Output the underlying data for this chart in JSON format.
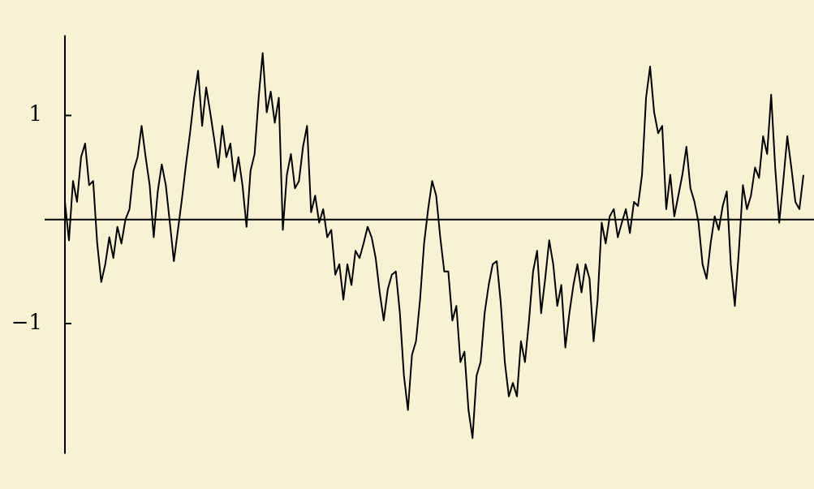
{
  "chart_data": {
    "type": "line",
    "categories": [
      null,
      null,
      null,
      null,
      null,
      null,
      null,
      null,
      null,
      null,
      null,
      null,
      null,
      null,
      null,
      null,
      null,
      null,
      null,
      null,
      null,
      null,
      null,
      null,
      null,
      null,
      null,
      null,
      null,
      null,
      null,
      null,
      null,
      null,
      null,
      null,
      null,
      null,
      null,
      null,
      null,
      null,
      null,
      null,
      null,
      null,
      null,
      null,
      null,
      null,
      null,
      null,
      null,
      null,
      null,
      null,
      null,
      null,
      null,
      null,
      null,
      null,
      null,
      null,
      null,
      null,
      null,
      null,
      null,
      null,
      null,
      null,
      null,
      null,
      null,
      null,
      null,
      null,
      null,
      null,
      null,
      null,
      null,
      null,
      null,
      null,
      null,
      null,
      null,
      null,
      null,
      null,
      null,
      null,
      null,
      null,
      null,
      null,
      null,
      null,
      null,
      null,
      null,
      null,
      null,
      null,
      null,
      null,
      null,
      null,
      null,
      null,
      null,
      null,
      null,
      null,
      null,
      null,
      null,
      null,
      null,
      null,
      null,
      null,
      null,
      null,
      null,
      null,
      null,
      null,
      null,
      null,
      null,
      null,
      null,
      null,
      null,
      null,
      null,
      null,
      null,
      null,
      null,
      null,
      null,
      null,
      null,
      null,
      null,
      null,
      null,
      null,
      null,
      null,
      null,
      null,
      null,
      null,
      null,
      null,
      null,
      null,
      null,
      null,
      null,
      null,
      null,
      null,
      null,
      null,
      null,
      null,
      null,
      null,
      null,
      null,
      null,
      null,
      null,
      null,
      null,
      null,
      null,
      null
    ],
    "series": [
      {
        "color": "#000000",
        "values": [
          0.17,
          -0.2,
          0.37,
          0.17,
          0.6,
          0.73,
          0.33,
          0.37,
          -0.23,
          -0.6,
          -0.43,
          -0.17,
          -0.37,
          -0.07,
          -0.23,
          0,
          0.1,
          0.47,
          0.6,
          0.9,
          0.6,
          0.33,
          -0.17,
          0.27,
          0.53,
          0.33,
          -0.03,
          -0.4,
          -0.1,
          0.2,
          0.53,
          0.83,
          1.17,
          1.43,
          0.9,
          1.27,
          1.03,
          0.77,
          0.5,
          0.9,
          0.6,
          0.73,
          0.37,
          0.6,
          0.33,
          -0.07,
          0.47,
          0.63,
          1.17,
          1.6,
          1.03,
          1.23,
          0.93,
          1.17,
          -0.1,
          0.43,
          0.63,
          0.3,
          0.37,
          0.7,
          0.9,
          0.07,
          0.23,
          -0.03,
          0.1,
          -0.17,
          -0.1,
          -0.53,
          -0.43,
          -0.77,
          -0.43,
          -0.63,
          -0.3,
          -0.37,
          -0.23,
          -0.07,
          -0.17,
          -0.37,
          -0.7,
          -0.97,
          -0.67,
          -0.53,
          -0.5,
          -0.9,
          -1.5,
          -1.83,
          -1.3,
          -1.17,
          -0.77,
          -0.23,
          0.1,
          0.37,
          0.23,
          -0.17,
          -0.5,
          -0.5,
          -0.97,
          -0.83,
          -1.37,
          -1.27,
          -1.83,
          -2.1,
          -1.5,
          -1.37,
          -0.9,
          -0.63,
          -0.43,
          -0.4,
          -0.8,
          -1.37,
          -1.7,
          -1.57,
          -1.7,
          -1.17,
          -1.37,
          -0.97,
          -0.5,
          -0.3,
          -0.9,
          -0.57,
          -0.2,
          -0.43,
          -0.83,
          -0.63,
          -1.23,
          -0.9,
          -0.63,
          -0.43,
          -0.7,
          -0.43,
          -0.57,
          -1.17,
          -0.77,
          -0.03,
          -0.23,
          0.03,
          0.1,
          -0.17,
          -0.03,
          0.1,
          -0.13,
          0.17,
          0.13,
          0.43,
          1.17,
          1.47,
          1.03,
          0.83,
          0.9,
          0.1,
          0.43,
          0.03,
          0.23,
          0.43,
          0.7,
          0.3,
          0.17,
          -0.03,
          -0.43,
          -0.57,
          -0.23,
          0.03,
          -0.1,
          0.13,
          0.27,
          -0.43,
          -0.83,
          -0.3,
          0.33,
          0.1,
          0.23,
          0.5,
          0.4,
          0.8,
          0.63,
          1.2,
          0.5,
          -0.03,
          0.37,
          0.8,
          0.5,
          0.17,
          0.1,
          0.43
        ]
      }
    ],
    "ylim": [
      -2.25,
      1.77
    ],
    "yticks": [
      1,
      {
        "value": -1,
        "label": "−1"
      }
    ],
    "tick_labels": "y",
    "grid": false,
    "legend": false,
    "marker": "none",
    "line_style": "solid"
  }
}
